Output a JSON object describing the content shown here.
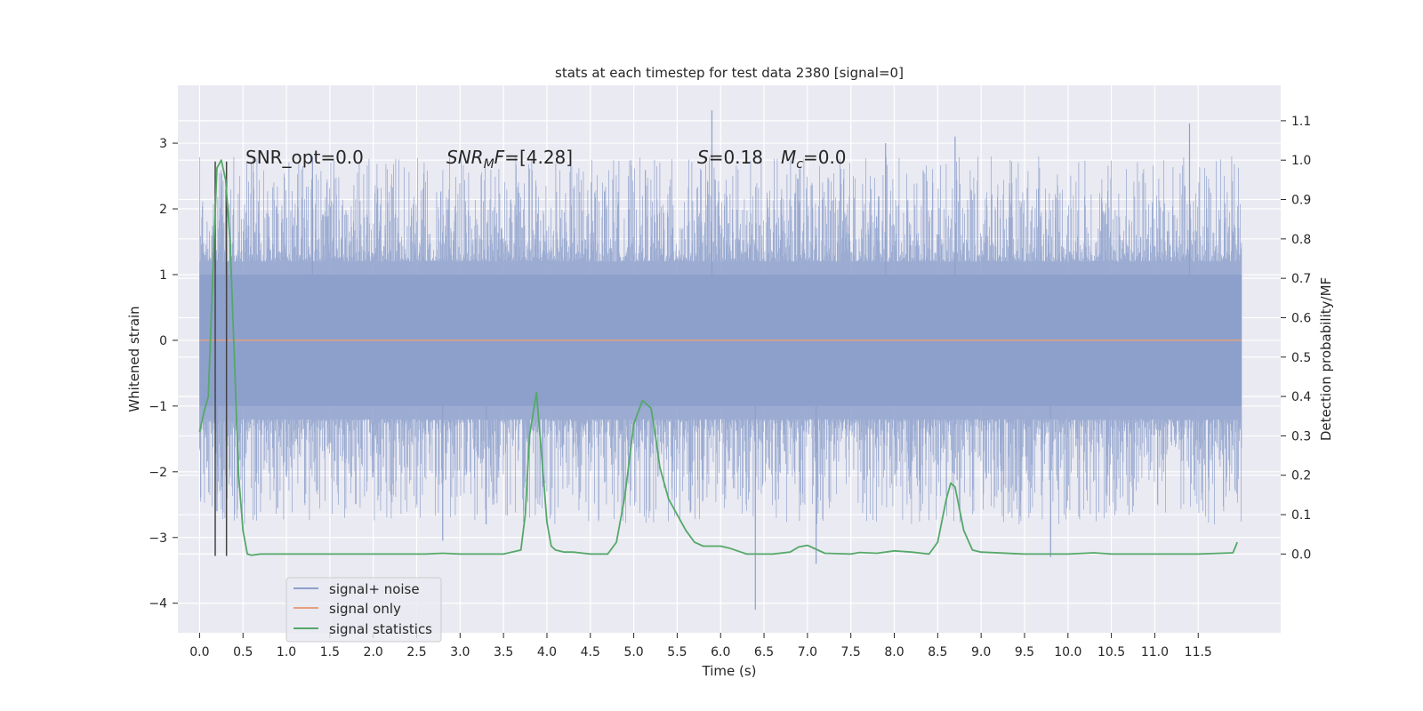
{
  "chart_data": {
    "type": "line",
    "title": "stats at each timestep for test data 2380 [signal=0]",
    "xlabel": "Time (s)",
    "ylabel": "Whitened strain",
    "y2label": "Detection probability/MF",
    "xlim": [
      -0.25,
      12.45
    ],
    "ylim": [
      -4.45,
      3.88
    ],
    "y2lim": [
      -0.2,
      1.19
    ],
    "x_ticks": [
      "0.0",
      "0.5",
      "1.0",
      "1.5",
      "2.0",
      "2.5",
      "3.0",
      "3.5",
      "4.0",
      "4.5",
      "5.0",
      "5.5",
      "6.0",
      "6.5",
      "7.0",
      "7.5",
      "8.0",
      "8.5",
      "9.0",
      "9.5",
      "10.0",
      "10.5",
      "11.0",
      "11.5"
    ],
    "y_ticks": [
      "3",
      "2",
      "1",
      "0",
      "−1",
      "−2",
      "−3",
      "−4"
    ],
    "y2_ticks": [
      "1.1",
      "1.0",
      "0.9",
      "0.8",
      "0.7",
      "0.6",
      "0.5",
      "0.4",
      "0.3",
      "0.2",
      "0.1",
      "0.0"
    ],
    "grid": true,
    "legend_position": "bottom-left",
    "annotations": {
      "snr_opt": "SNR_opt=0.0",
      "snr_mf": "[4.28]",
      "s": "=0.18",
      "mc": "=0.0"
    },
    "series": [
      {
        "name": "signal+ noise",
        "color": "#8da0cb",
        "axis": "left",
        "kind": "noise_band",
        "x_range": [
          0.0,
          12.0
        ],
        "core_range": [
          -1.0,
          1.0
        ],
        "max_extent": [
          -4.1,
          3.5
        ],
        "spikes": [
          {
            "x": 0.2,
            "y": -2.6
          },
          {
            "x": 0.3,
            "y": 2.3
          },
          {
            "x": 1.3,
            "y": 2.8
          },
          {
            "x": 2.8,
            "y": -3.05
          },
          {
            "x": 3.3,
            "y": -2.8
          },
          {
            "x": 5.9,
            "y": 3.5
          },
          {
            "x": 6.4,
            "y": -4.1
          },
          {
            "x": 7.1,
            "y": -3.4
          },
          {
            "x": 7.9,
            "y": 3.0
          },
          {
            "x": 8.7,
            "y": 3.1
          },
          {
            "x": 9.8,
            "y": -3.3
          },
          {
            "x": 11.4,
            "y": 3.3
          }
        ]
      },
      {
        "name": "signal only",
        "color": "#e5a07e",
        "axis": "left",
        "x": [
          0.0,
          12.0
        ],
        "y": [
          0.0,
          0.0
        ]
      },
      {
        "name": "signal statistics",
        "color": "#55a868",
        "axis": "right",
        "x": [
          0.0,
          0.05,
          0.1,
          0.15,
          0.2,
          0.25,
          0.3,
          0.35,
          0.4,
          0.45,
          0.5,
          0.55,
          0.6,
          0.7,
          1.0,
          2.0,
          2.6,
          2.8,
          3.0,
          3.5,
          3.7,
          3.75,
          3.8,
          3.88,
          3.95,
          4.0,
          4.05,
          4.1,
          4.2,
          4.3,
          4.5,
          4.7,
          4.8,
          4.9,
          5.0,
          5.1,
          5.2,
          5.25,
          5.3,
          5.4,
          5.5,
          5.6,
          5.7,
          5.8,
          5.9,
          6.0,
          6.1,
          6.3,
          6.6,
          6.8,
          6.9,
          7.0,
          7.1,
          7.2,
          7.5,
          7.6,
          7.8,
          8.0,
          8.2,
          8.4,
          8.5,
          8.6,
          8.65,
          8.7,
          8.8,
          8.9,
          9.0,
          9.5,
          10.0,
          10.3,
          10.5,
          11.0,
          11.5,
          11.9,
          11.95
        ],
        "y": [
          0.31,
          0.36,
          0.4,
          0.7,
          0.98,
          1.0,
          0.95,
          0.8,
          0.5,
          0.2,
          0.06,
          0.0,
          -0.003,
          0.0,
          0.0,
          0.0,
          0.0,
          0.002,
          0.0,
          0.0,
          0.01,
          0.1,
          0.3,
          0.41,
          0.22,
          0.08,
          0.02,
          0.01,
          0.005,
          0.005,
          0.0,
          0.0,
          0.03,
          0.15,
          0.33,
          0.39,
          0.37,
          0.3,
          0.22,
          0.14,
          0.1,
          0.06,
          0.03,
          0.02,
          0.02,
          0.02,
          0.015,
          0.0,
          0.0,
          0.005,
          0.018,
          0.022,
          0.012,
          0.002,
          0.0,
          0.004,
          0.002,
          0.008,
          0.005,
          0.0,
          0.03,
          0.14,
          0.18,
          0.17,
          0.06,
          0.01,
          0.005,
          0.0,
          0.0,
          0.003,
          0.0,
          0.0,
          0.0,
          0.003,
          0.03
        ]
      }
    ],
    "markers": {
      "name": "event markers",
      "color": "#444444",
      "x": [
        0.18,
        0.31
      ],
      "y_range": [
        -3.28,
        2.72
      ]
    }
  }
}
